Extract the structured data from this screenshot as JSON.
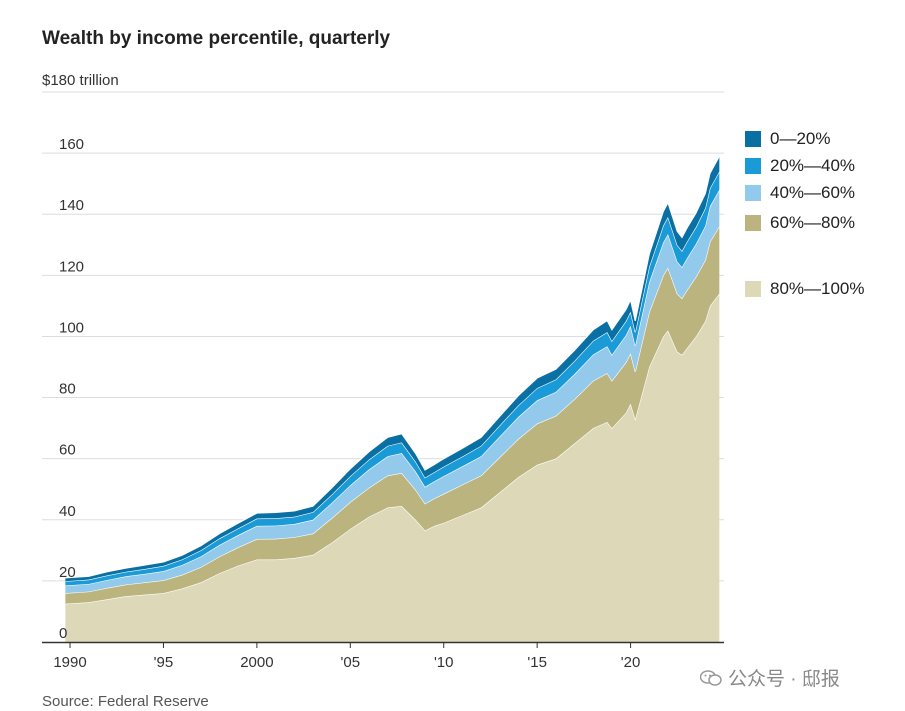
{
  "title": "Wealth by income percentile, quarterly",
  "source": "Source: Federal Reserve",
  "watermark": "公众号 · 邸报",
  "colors": {
    "p0_20": "#0a6fa3",
    "p20_40": "#1a9ad6",
    "p40_60": "#93c9ea",
    "p60_80": "#bcb47e",
    "p80_100": "#ddd8b8",
    "grid": "#dddddd",
    "axis": "#333333",
    "edge": "#ffffff"
  },
  "chart_data": {
    "type": "area",
    "title": "Wealth by income percentile, quarterly",
    "ylabel": "$ trillion",
    "y_top_label": "$180 trillion",
    "ylim": [
      0,
      180
    ],
    "yticks": [
      0,
      20,
      40,
      60,
      80,
      100,
      120,
      140,
      160
    ],
    "ytick_labels": [
      "0",
      "20",
      "40",
      "60",
      "80",
      "100",
      "120",
      "140",
      "160"
    ],
    "xlim": [
      1988.5,
      2025.0
    ],
    "xticks": [
      1990,
      1995,
      2000,
      2005,
      2010,
      2015,
      2020
    ],
    "xtick_labels": [
      "1990",
      "'95",
      "2000",
      "'05",
      "'10",
      "'15",
      "'20"
    ],
    "x": [
      1989.75,
      1991,
      1992,
      1993,
      1994,
      1995,
      1996,
      1997,
      1998,
      1999,
      2000,
      2001,
      2002,
      2003,
      2004,
      2005,
      2006,
      2007,
      2007.75,
      2008.5,
      2009.0,
      2009.5,
      2010,
      2011,
      2012,
      2013,
      2014,
      2015,
      2016,
      2017,
      2018,
      2018.75,
      2019,
      2019.75,
      2020.0,
      2020.25,
      2021,
      2021.75,
      2022.0,
      2022.5,
      2022.75,
      2023,
      2023.5,
      2024,
      2024.25,
      2024.75
    ],
    "series": [
      {
        "name": "80%—100%",
        "values": [
          12.5,
          13.0,
          14.0,
          15.0,
          15.5,
          16.0,
          17.5,
          19.5,
          22.5,
          25.0,
          27.0,
          27.0,
          27.5,
          28.5,
          32.5,
          37.0,
          41.0,
          44.0,
          44.5,
          40.0,
          36.5,
          38.0,
          39.0,
          41.5,
          44.0,
          49.0,
          54.0,
          58.0,
          60.0,
          65.0,
          70.0,
          72.0,
          70.0,
          75.0,
          78.0,
          73.0,
          90.0,
          100.0,
          102.0,
          95.0,
          94.0,
          96.0,
          100.0,
          105.0,
          110.0,
          114.0
        ]
      },
      {
        "name": "60%—80%",
        "values": [
          3.5,
          3.5,
          3.7,
          3.8,
          4.0,
          4.2,
          4.5,
          5.0,
          5.5,
          6.0,
          6.7,
          6.8,
          6.8,
          7.0,
          8.0,
          8.8,
          9.5,
          10.5,
          10.8,
          9.8,
          8.8,
          9.0,
          9.5,
          10.0,
          10.5,
          11.5,
          12.5,
          13.5,
          14.0,
          14.5,
          15.5,
          16.0,
          15.5,
          16.5,
          16.5,
          15.5,
          18.0,
          20.0,
          20.5,
          19.0,
          18.5,
          19.0,
          19.5,
          20.0,
          21.0,
          22.0
        ]
      },
      {
        "name": "40%—60%",
        "values": [
          2.5,
          2.5,
          2.6,
          2.7,
          2.8,
          3.0,
          3.2,
          3.5,
          3.8,
          4.0,
          4.3,
          4.3,
          4.3,
          4.5,
          5.0,
          5.5,
          6.0,
          6.3,
          6.5,
          6.0,
          5.5,
          5.6,
          5.8,
          6.0,
          6.3,
          6.8,
          7.2,
          7.6,
          7.8,
          8.2,
          8.6,
          8.8,
          8.5,
          8.9,
          9.0,
          8.5,
          9.8,
          10.8,
          11.0,
          10.5,
          10.2,
          10.4,
          10.8,
          11.2,
          11.6,
          12.0
        ]
      },
      {
        "name": "20%—40%",
        "values": [
          1.4,
          1.4,
          1.5,
          1.5,
          1.6,
          1.7,
          1.8,
          2.0,
          2.1,
          2.2,
          2.4,
          2.4,
          2.4,
          2.5,
          2.7,
          3.0,
          3.2,
          3.4,
          3.5,
          3.2,
          3.0,
          3.0,
          3.1,
          3.2,
          3.4,
          3.6,
          3.8,
          4.0,
          4.1,
          4.3,
          4.5,
          4.6,
          4.5,
          4.6,
          4.6,
          4.4,
          5.0,
          5.5,
          5.6,
          5.4,
          5.3,
          5.4,
          5.5,
          5.8,
          5.9,
          6.0
        ]
      },
      {
        "name": "0—20%",
        "values": [
          1.1,
          1.1,
          1.2,
          1.2,
          1.3,
          1.3,
          1.4,
          1.5,
          1.6,
          1.7,
          1.8,
          1.9,
          1.9,
          2.0,
          2.2,
          2.4,
          2.6,
          2.8,
          2.9,
          2.7,
          2.5,
          2.5,
          2.6,
          2.7,
          2.8,
          3.0,
          3.2,
          3.3,
          3.4,
          3.5,
          3.6,
          3.8,
          3.7,
          3.8,
          3.9,
          3.7,
          4.2,
          4.6,
          4.7,
          4.5,
          4.4,
          4.5,
          4.6,
          4.8,
          4.9,
          5.0
        ]
      }
    ],
    "legend": [
      {
        "label": "0—20%",
        "color": "#0a6fa3"
      },
      {
        "label": "20%—40%",
        "color": "#1a9ad6"
      },
      {
        "label": "40%—60%",
        "color": "#93c9ea"
      },
      {
        "label": "60%—80%",
        "color": "#bcb47e"
      },
      {
        "label": "80%—100%",
        "color": "#ddd8b8"
      }
    ]
  }
}
